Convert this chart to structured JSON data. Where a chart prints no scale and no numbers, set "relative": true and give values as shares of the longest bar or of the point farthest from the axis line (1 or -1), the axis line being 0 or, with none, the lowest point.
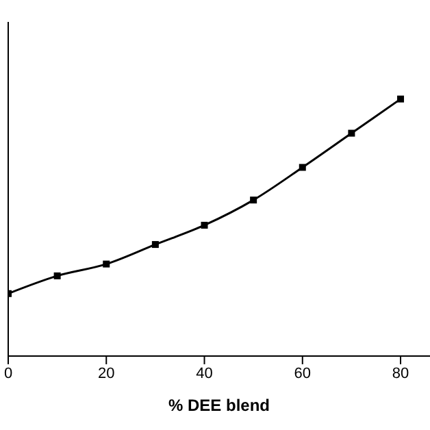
{
  "chart_data": {
    "type": "line",
    "xlabel": "% DEE blend",
    "relative": true,
    "x": [
      0,
      10,
      20,
      30,
      40,
      50,
      60,
      70,
      80
    ],
    "values": [
      0.243,
      0.312,
      0.358,
      0.434,
      0.509,
      0.607,
      0.734,
      0.867,
      1
    ],
    "color": "#000000",
    "marker": "square",
    "line_style": "solid",
    "xlim": [
      0,
      86
    ],
    "xticks": [
      0,
      20,
      40,
      60,
      80
    ]
  }
}
